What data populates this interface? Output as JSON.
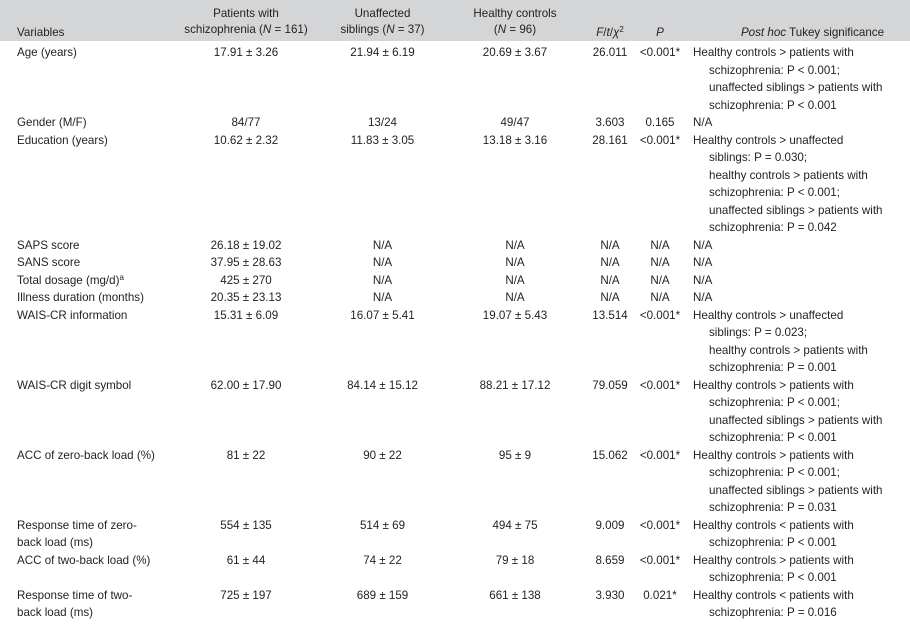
{
  "header": {
    "variables": "Variables",
    "patients": [
      "Patients with",
      "schizophrenia (",
      "N",
      " = 161)"
    ],
    "siblings": [
      "Unaffected",
      "siblings (",
      "N",
      " = 37)"
    ],
    "controls": [
      "Healthy controls",
      "(",
      "N",
      " = 96)"
    ],
    "stat": [
      "F",
      "/",
      "t",
      "/",
      "χ",
      "2"
    ],
    "p": "P",
    "posthoc": [
      "Post hoc",
      " Tukey significance"
    ]
  },
  "rows": [
    {
      "variable": [
        "Age (years)"
      ],
      "patients": "17.91 ± 3.26",
      "siblings": "21.94 ± 6.19",
      "controls": "20.69 ± 3.67",
      "stat": "26.011",
      "p": "<0.001*",
      "posthoc": [
        "Healthy controls > patients with",
        "schizophrenia: P < 0.001;",
        "unaffected siblings > patients with",
        "schizophrenia: P < 0.001"
      ]
    },
    {
      "variable": [
        "Gender (M/F)"
      ],
      "patients": "84/77",
      "siblings": "13/24",
      "controls": "49/47",
      "stat": "3.603",
      "p": "0.165",
      "posthoc": [
        "N/A"
      ]
    },
    {
      "variable": [
        "Education (years)"
      ],
      "patients": "10.62 ± 2.32",
      "siblings": "11.83 ± 3.05",
      "controls": "13.18 ± 3.16",
      "stat": "28.161",
      "p": "<0.001*",
      "posthoc": [
        "Healthy controls > unaffected",
        "siblings: P = 0.030;",
        "healthy controls > patients with",
        "schizophrenia: P < 0.001;",
        "unaffected siblings > patients with",
        "schizophrenia: P = 0.042"
      ]
    },
    {
      "variable": [
        "SAPS score"
      ],
      "patients": "26.18 ± 19.02",
      "siblings": "N/A",
      "controls": "N/A",
      "stat": "N/A",
      "p": "N/A",
      "posthoc": [
        "N/A"
      ]
    },
    {
      "variable": [
        "SANS score"
      ],
      "patients": "37.95 ± 28.63",
      "siblings": "N/A",
      "controls": "N/A",
      "stat": "N/A",
      "p": "N/A",
      "posthoc": [
        "N/A"
      ]
    },
    {
      "variable": [
        "Total dosage (mg/d)"
      ],
      "sup": "a",
      "patients": "425 ± 270",
      "siblings": "N/A",
      "controls": "N/A",
      "stat": "N/A",
      "p": "N/A",
      "posthoc": [
        "N/A"
      ]
    },
    {
      "variable": [
        "Illness duration (months)"
      ],
      "patients": "20.35 ± 23.13",
      "siblings": "N/A",
      "controls": "N/A",
      "stat": "N/A",
      "p": "N/A",
      "posthoc": [
        "N/A"
      ]
    },
    {
      "variable": [
        "WAIS-CR information"
      ],
      "patients": "15.31 ± 6.09",
      "siblings": "16.07 ± 5.41",
      "controls": "19.07 ± 5.43",
      "stat": "13.514",
      "p": "<0.001*",
      "posthoc": [
        "Healthy controls > unaffected",
        "siblings: P = 0.023;",
        "healthy controls > patients with",
        "schizophrenia: P = 0.001"
      ]
    },
    {
      "variable": [
        "WAIS-CR digit symbol"
      ],
      "patients": "62.00 ± 17.90",
      "siblings": "84.14 ± 15.12",
      "controls": "88.21 ± 17.12",
      "stat": "79.059",
      "p": "<0.001*",
      "posthoc": [
        "Healthy controls > patients with",
        "schizophrenia: P < 0.001;",
        "unaffected siblings > patients with",
        "schizophrenia: P < 0.001"
      ]
    },
    {
      "variable": [
        "ACC of zero-back load (%)"
      ],
      "patients": "81 ± 22",
      "siblings": "90 ± 22",
      "controls": "95 ± 9",
      "stat": "15.062",
      "p": "<0.001*",
      "posthoc": [
        "Healthy controls > patients with",
        "schizophrenia: P < 0.001;",
        "unaffected siblings > patients with",
        "schizophrenia: P = 0.031"
      ]
    },
    {
      "variable": [
        "Response time of zero-",
        "back load (ms)"
      ],
      "patients": "554 ± 135",
      "siblings": "514 ± 69",
      "controls": "494 ± 75",
      "stat": "9.009",
      "p": "<0.001*",
      "posthoc": [
        "Healthy controls < patients with",
        "schizophrenia: P < 0.001"
      ]
    },
    {
      "variable": [
        "ACC of two-back load (%)"
      ],
      "patients": "61 ± 44",
      "siblings": "74 ± 22",
      "controls": "79 ± 18",
      "stat": "8.659",
      "p": "<0.001*",
      "posthoc": [
        "Healthy controls > patients with",
        "schizophrenia: P < 0.001"
      ]
    },
    {
      "variable": [
        "Response time of two-",
        "back load (ms)"
      ],
      "patients": "725 ± 197",
      "siblings": "689 ± 159",
      "controls": "661 ± 138",
      "stat": "3.930",
      "p": "0.021*",
      "posthoc": [
        "Healthy controls < patients with",
        "schizophrenia: P = 0.016"
      ]
    }
  ]
}
